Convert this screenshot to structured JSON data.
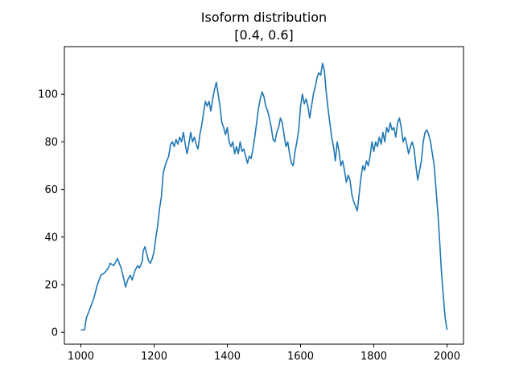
{
  "chart_data": {
    "type": "line",
    "title": "Isoform distribution",
    "subtitle": "[0.4, 0.6]",
    "xlabel": "",
    "ylabel": "",
    "xlim": [
      955,
      2045
    ],
    "ylim": [
      -5,
      120
    ],
    "x_ticks": [
      1000,
      1200,
      1400,
      1600,
      1800,
      2000
    ],
    "y_ticks": [
      0,
      20,
      40,
      60,
      80,
      100
    ],
    "grid": false,
    "legend": "none",
    "series": [
      {
        "color": "#1f77b4",
        "points": [
          [
            1000,
            1
          ],
          [
            1010,
            1
          ],
          [
            1015,
            6
          ],
          [
            1025,
            10
          ],
          [
            1035,
            14
          ],
          [
            1045,
            20
          ],
          [
            1055,
            24
          ],
          [
            1065,
            25
          ],
          [
            1075,
            27
          ],
          [
            1080,
            29
          ],
          [
            1090,
            28
          ],
          [
            1100,
            31
          ],
          [
            1110,
            27
          ],
          [
            1118,
            22
          ],
          [
            1122,
            19
          ],
          [
            1128,
            22
          ],
          [
            1135,
            24
          ],
          [
            1140,
            22
          ],
          [
            1148,
            26
          ],
          [
            1155,
            28
          ],
          [
            1160,
            27
          ],
          [
            1168,
            30
          ],
          [
            1170,
            34
          ],
          [
            1175,
            36
          ],
          [
            1180,
            33
          ],
          [
            1185,
            30
          ],
          [
            1190,
            29
          ],
          [
            1195,
            31
          ],
          [
            1200,
            34
          ],
          [
            1205,
            40
          ],
          [
            1210,
            45
          ],
          [
            1215,
            52
          ],
          [
            1220,
            57
          ],
          [
            1225,
            67
          ],
          [
            1232,
            71
          ],
          [
            1240,
            74
          ],
          [
            1245,
            79
          ],
          [
            1250,
            80
          ],
          [
            1255,
            78
          ],
          [
            1260,
            81
          ],
          [
            1265,
            79
          ],
          [
            1270,
            82
          ],
          [
            1275,
            80
          ],
          [
            1280,
            84
          ],
          [
            1285,
            79
          ],
          [
            1290,
            75
          ],
          [
            1295,
            79
          ],
          [
            1300,
            84
          ],
          [
            1305,
            80
          ],
          [
            1310,
            82
          ],
          [
            1315,
            79
          ],
          [
            1320,
            77
          ],
          [
            1325,
            83
          ],
          [
            1330,
            87
          ],
          [
            1335,
            92
          ],
          [
            1340,
            97
          ],
          [
            1345,
            95
          ],
          [
            1350,
            97
          ],
          [
            1355,
            93
          ],
          [
            1360,
            98
          ],
          [
            1365,
            102
          ],
          [
            1370,
            105
          ],
          [
            1375,
            100
          ],
          [
            1380,
            95
          ],
          [
            1385,
            88
          ],
          [
            1390,
            86
          ],
          [
            1395,
            83
          ],
          [
            1400,
            86
          ],
          [
            1405,
            80
          ],
          [
            1410,
            78
          ],
          [
            1415,
            80
          ],
          [
            1420,
            75
          ],
          [
            1425,
            78
          ],
          [
            1430,
            75
          ],
          [
            1435,
            80
          ],
          [
            1440,
            76
          ],
          [
            1445,
            77
          ],
          [
            1450,
            74
          ],
          [
            1455,
            71
          ],
          [
            1460,
            74
          ],
          [
            1465,
            73
          ],
          [
            1470,
            77
          ],
          [
            1475,
            82
          ],
          [
            1480,
            88
          ],
          [
            1485,
            94
          ],
          [
            1490,
            98
          ],
          [
            1495,
            101
          ],
          [
            1500,
            99
          ],
          [
            1505,
            95
          ],
          [
            1510,
            93
          ],
          [
            1515,
            90
          ],
          [
            1520,
            86
          ],
          [
            1525,
            81
          ],
          [
            1530,
            80
          ],
          [
            1535,
            84
          ],
          [
            1540,
            86
          ],
          [
            1545,
            90
          ],
          [
            1550,
            88
          ],
          [
            1555,
            83
          ],
          [
            1560,
            78
          ],
          [
            1565,
            80
          ],
          [
            1570,
            75
          ],
          [
            1575,
            71
          ],
          [
            1580,
            70
          ],
          [
            1585,
            76
          ],
          [
            1590,
            80
          ],
          [
            1595,
            85
          ],
          [
            1600,
            95
          ],
          [
            1605,
            100
          ],
          [
            1610,
            96
          ],
          [
            1615,
            98
          ],
          [
            1620,
            95
          ],
          [
            1625,
            90
          ],
          [
            1630,
            95
          ],
          [
            1635,
            100
          ],
          [
            1640,
            103
          ],
          [
            1645,
            107
          ],
          [
            1650,
            109
          ],
          [
            1655,
            108
          ],
          [
            1660,
            113
          ],
          [
            1665,
            110
          ],
          [
            1670,
            101
          ],
          [
            1675,
            94
          ],
          [
            1680,
            88
          ],
          [
            1685,
            82
          ],
          [
            1690,
            78
          ],
          [
            1695,
            72
          ],
          [
            1700,
            80
          ],
          [
            1705,
            76
          ],
          [
            1710,
            70
          ],
          [
            1715,
            72
          ],
          [
            1720,
            68
          ],
          [
            1725,
            63
          ],
          [
            1730,
            66
          ],
          [
            1735,
            64
          ],
          [
            1740,
            58
          ],
          [
            1745,
            55
          ],
          [
            1750,
            53
          ],
          [
            1755,
            51
          ],
          [
            1760,
            58
          ],
          [
            1765,
            65
          ],
          [
            1770,
            70
          ],
          [
            1775,
            68
          ],
          [
            1780,
            72
          ],
          [
            1785,
            70
          ],
          [
            1790,
            74
          ],
          [
            1795,
            80
          ],
          [
            1800,
            76
          ],
          [
            1805,
            80
          ],
          [
            1810,
            78
          ],
          [
            1815,
            82
          ],
          [
            1820,
            79
          ],
          [
            1825,
            84
          ],
          [
            1830,
            80
          ],
          [
            1835,
            86
          ],
          [
            1840,
            84
          ],
          [
            1845,
            88
          ],
          [
            1850,
            85
          ],
          [
            1855,
            86
          ],
          [
            1860,
            82
          ],
          [
            1865,
            88
          ],
          [
            1870,
            90
          ],
          [
            1875,
            86
          ],
          [
            1880,
            80
          ],
          [
            1885,
            82
          ],
          [
            1890,
            79
          ],
          [
            1895,
            75
          ],
          [
            1900,
            78
          ],
          [
            1905,
            80
          ],
          [
            1910,
            77
          ],
          [
            1915,
            70
          ],
          [
            1920,
            64
          ],
          [
            1925,
            68
          ],
          [
            1930,
            72
          ],
          [
            1935,
            80
          ],
          [
            1940,
            84
          ],
          [
            1945,
            85
          ],
          [
            1950,
            83
          ],
          [
            1955,
            80
          ],
          [
            1960,
            75
          ],
          [
            1965,
            70
          ],
          [
            1970,
            60
          ],
          [
            1975,
            50
          ],
          [
            1980,
            38
          ],
          [
            1985,
            25
          ],
          [
            1990,
            15
          ],
          [
            1995,
            6
          ],
          [
            2000,
            1
          ]
        ]
      }
    ]
  }
}
